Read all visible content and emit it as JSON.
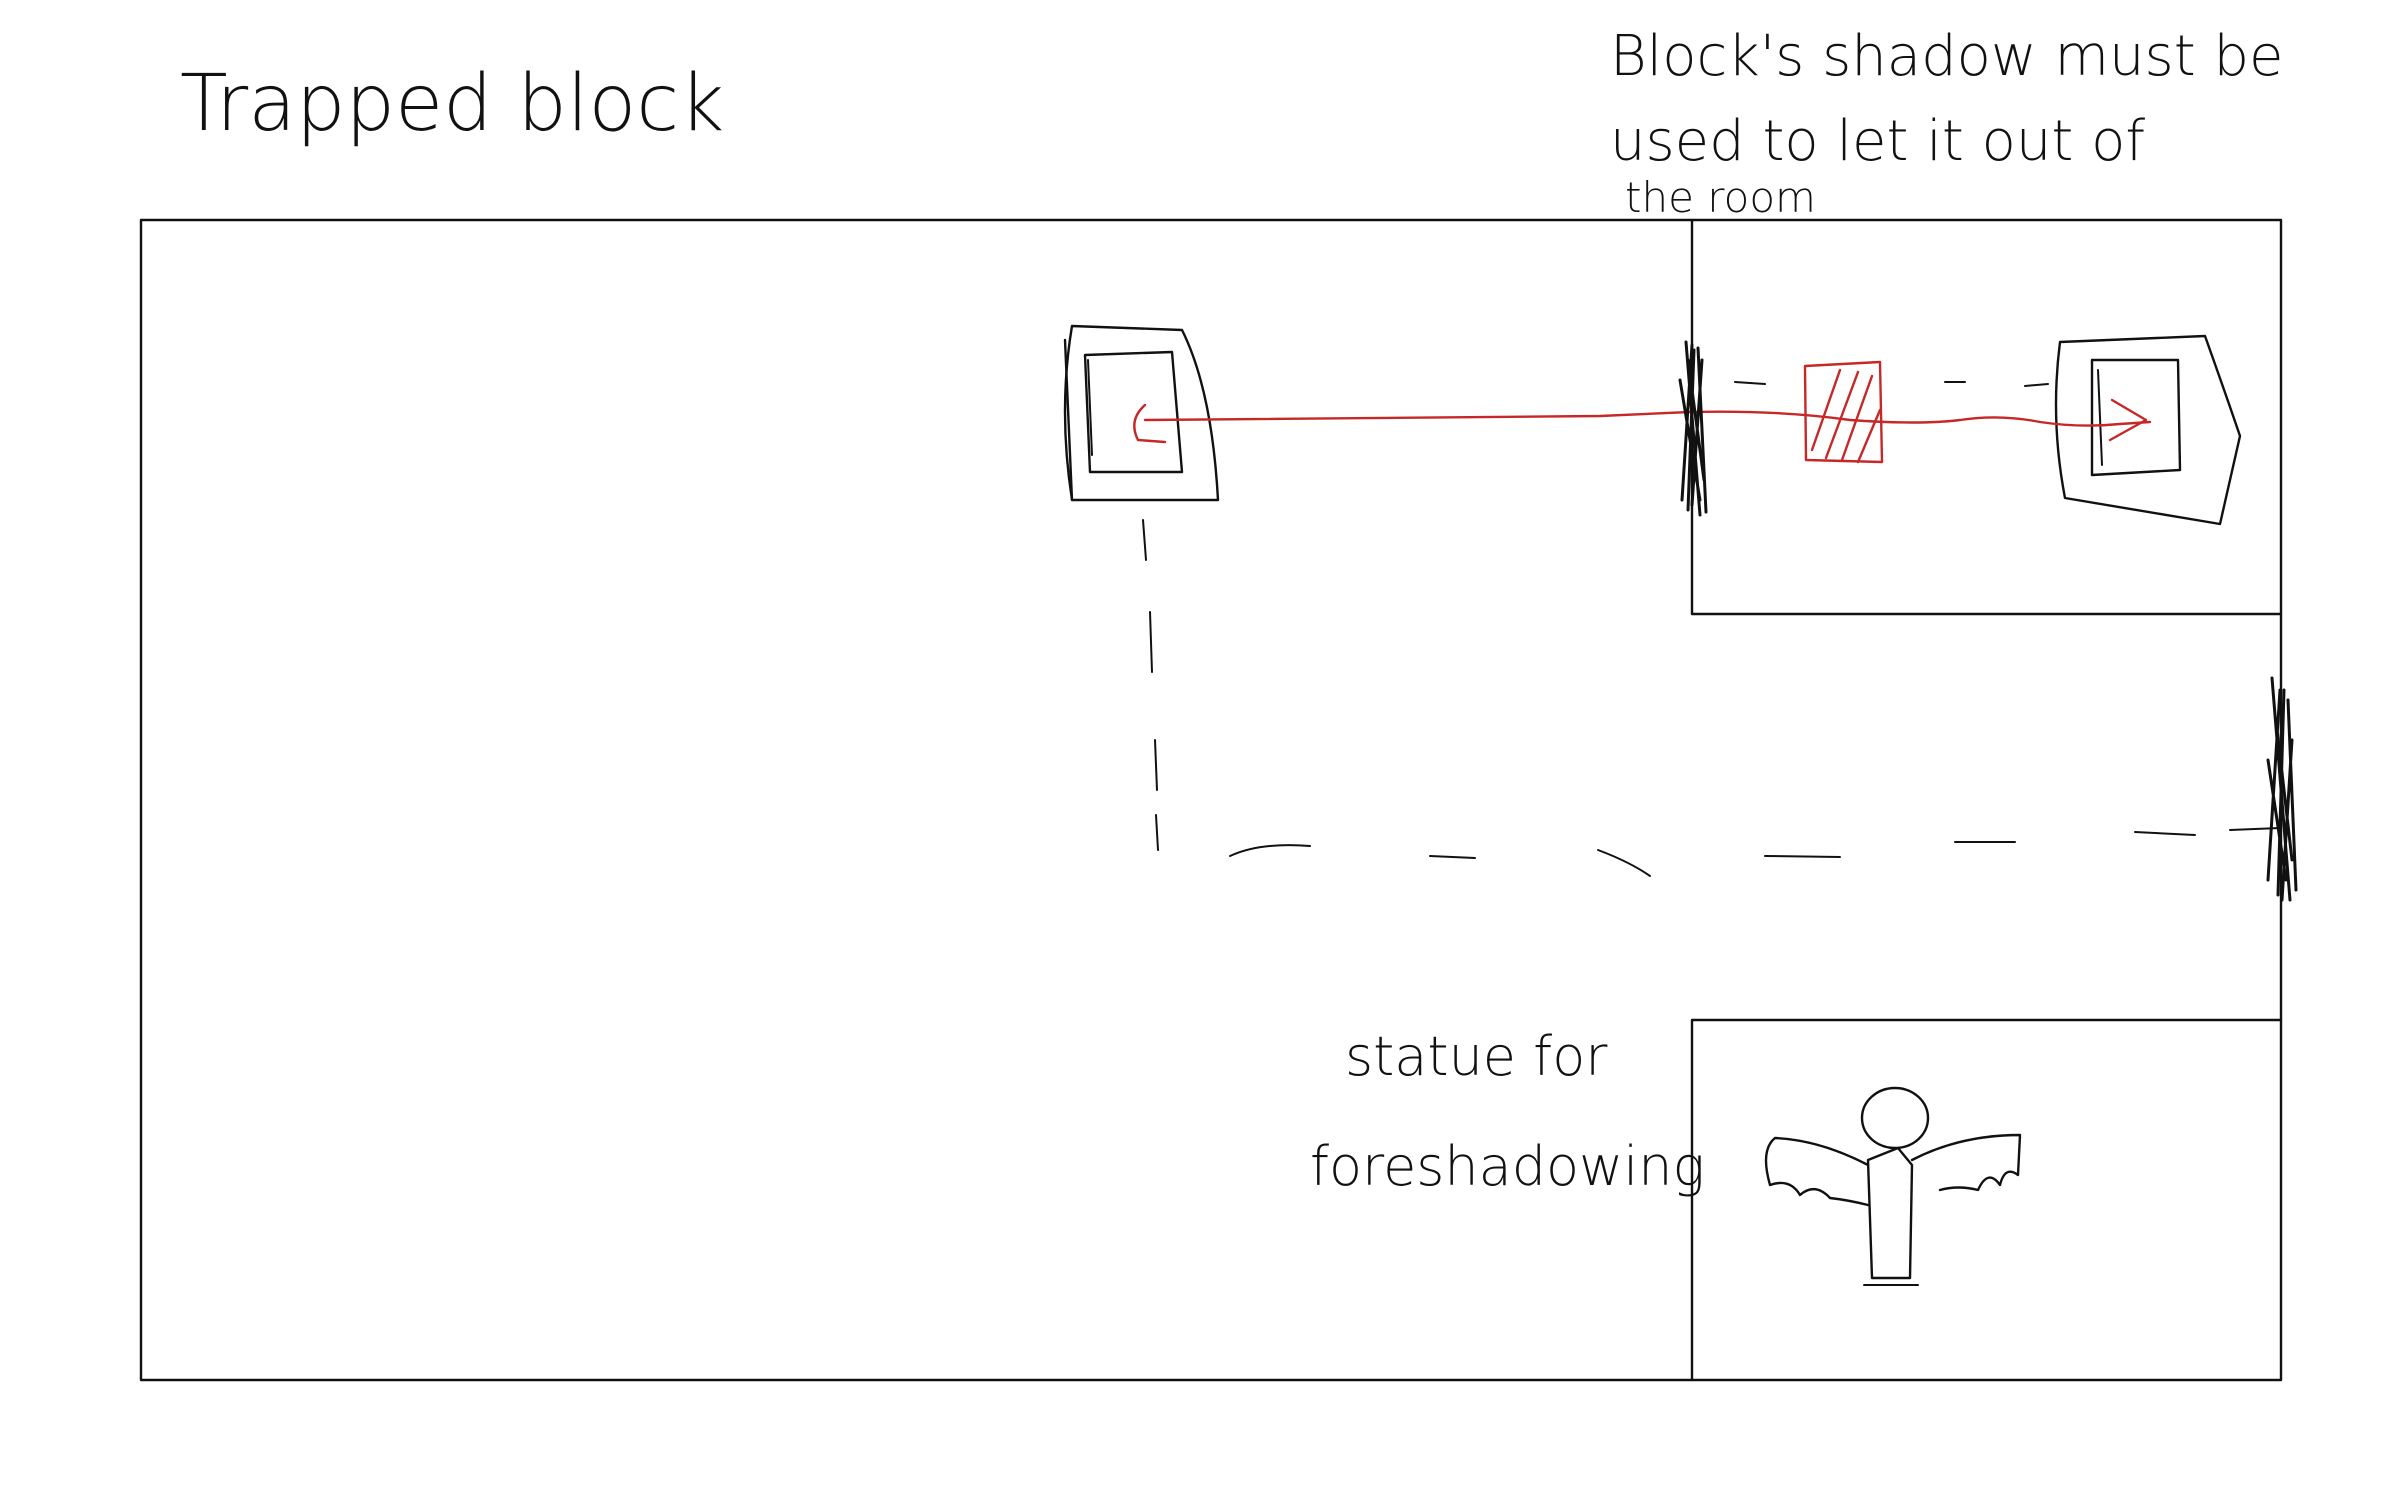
{
  "title": "Trapped block",
  "notes": {
    "shadow_line1": "Block's shadow must be",
    "shadow_line2": "used to let it out of",
    "shadow_line3": "the room",
    "statue_line1": "statue for",
    "statue_line2": "foreshadowing"
  },
  "colors": {
    "ink": "#111111",
    "shadow_path": "#c62828",
    "background": "#ffffff"
  }
}
